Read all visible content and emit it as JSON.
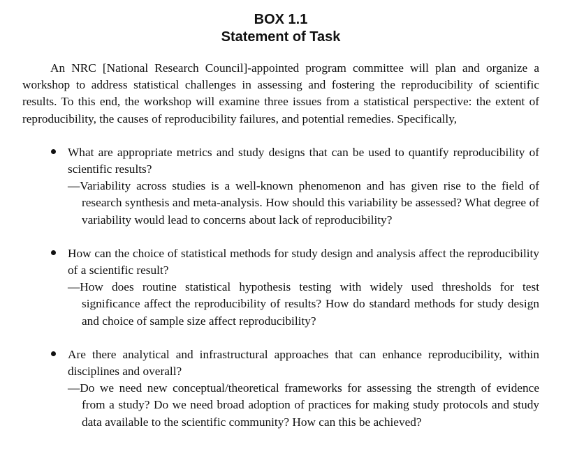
{
  "box": {
    "label": "BOX 1.1",
    "title": "Statement of Task"
  },
  "intro": "An NRC [National Research Council]-appointed program committee will plan and organize a workshop to address statistical challenges in assessing and fostering the reproducibility of scientific results. To this end, the workshop will examine three issues from a statistical perspective: the extent of reproducibility, the causes of reproducibility failures, and potential remedies. Specifically,",
  "bullets": [
    {
      "question": "What are appropriate metrics and study designs that can be used to quantify reproducibility of scientific results?",
      "detail": "—Variability across studies is a well-known phenomenon and has given rise to the field of research synthesis and meta-analysis. How should this variability be assessed? What degree of variability would lead to concerns about lack of reproducibility?"
    },
    {
      "question": "How can the choice of statistical methods for study design and analysis affect the reproducibility of a scientific result?",
      "detail": "—How does routine statistical hypothesis testing with widely used thresholds for test significance affect the reproducibility of results? How do standard methods for study design and choice of sample size affect reproducibility?"
    },
    {
      "question": "Are there analytical and infrastructural approaches that can enhance reproducibility, within disciplines and overall?",
      "detail": "—Do we need new conceptual/theoretical frameworks for assessing the strength of evidence from a study? Do we need broad adoption of practices for making study protocols and study data available to the scientific community? How can this be achieved?"
    }
  ]
}
